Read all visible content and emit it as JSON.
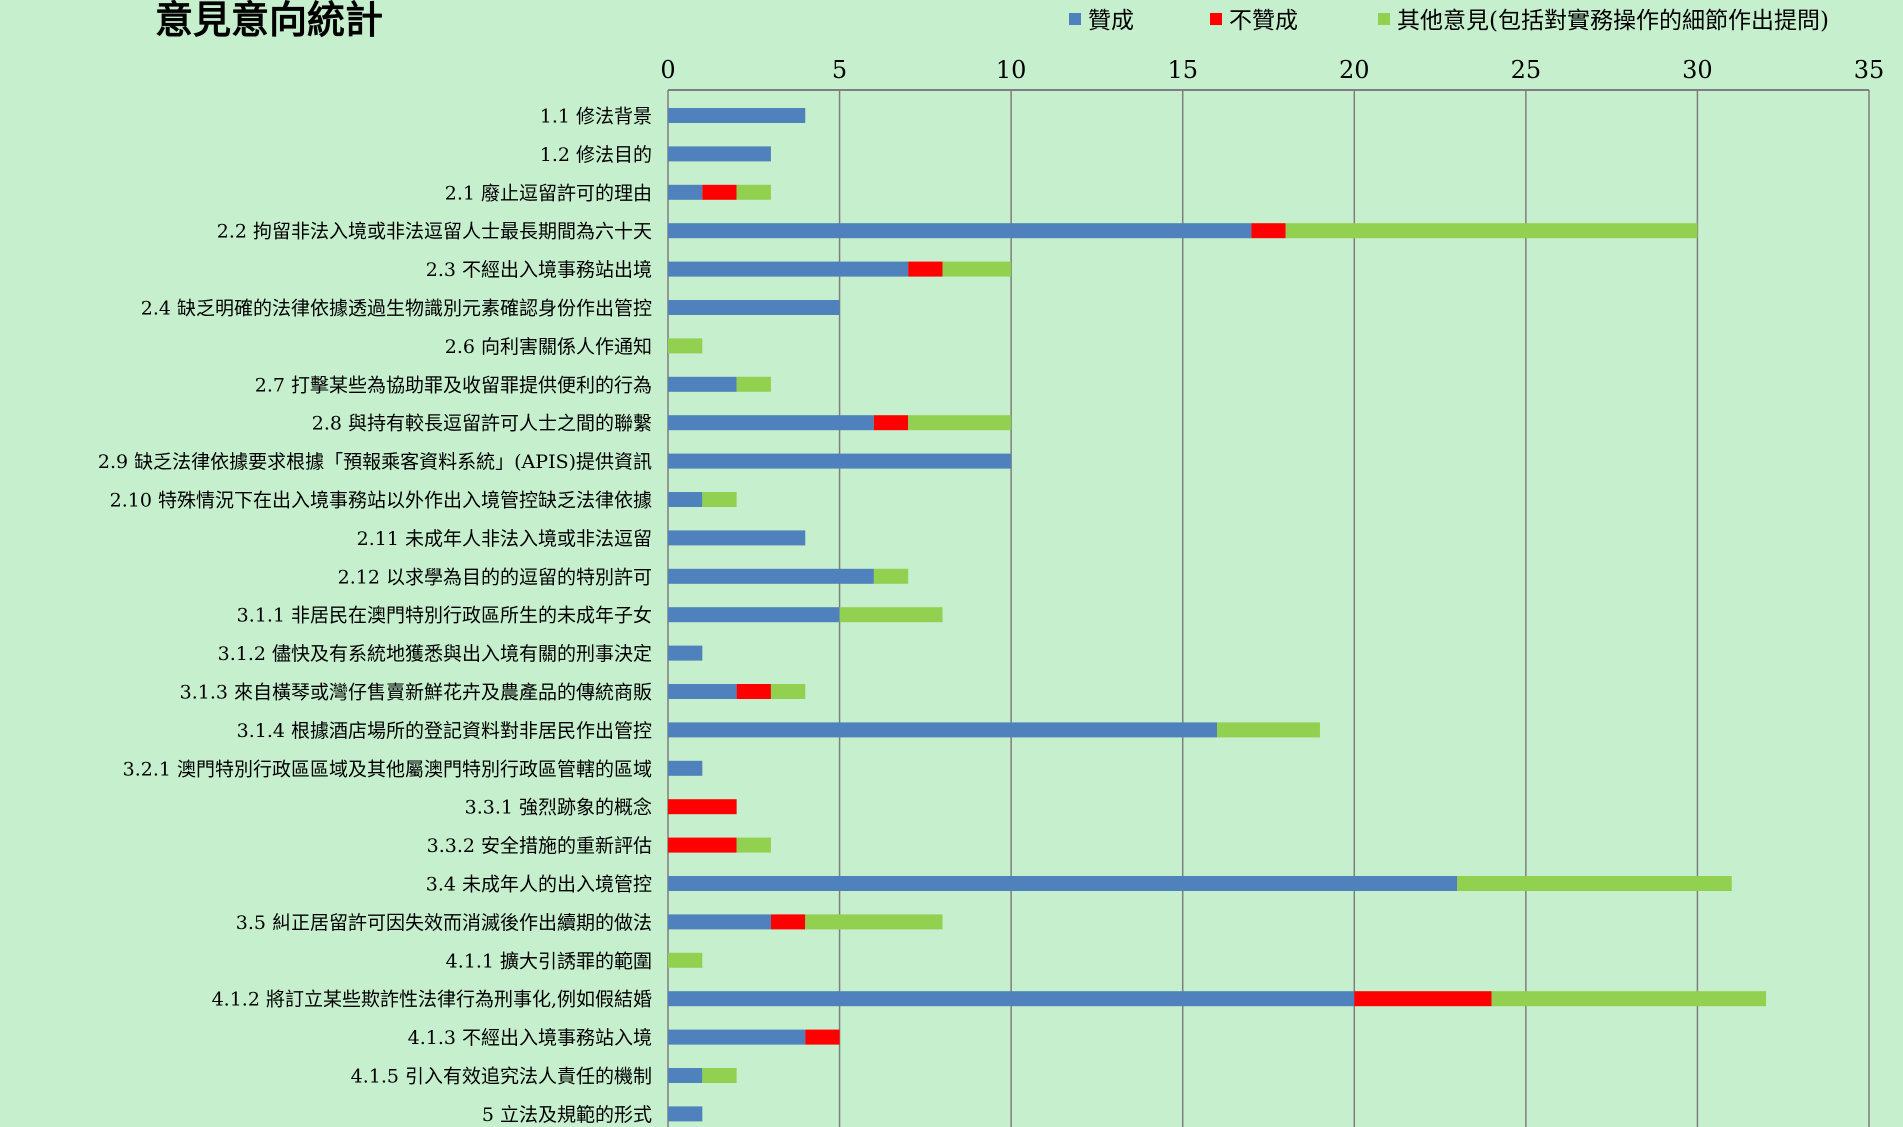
{
  "chart_data": {
    "type": "bar",
    "orientation": "horizontal",
    "stacked": true,
    "title": "意見意向統計",
    "legend_position": "top-right",
    "grid": true,
    "x_axis_position": "top",
    "xlim": [
      0,
      35
    ],
    "xticks": [
      0,
      5,
      10,
      15,
      20,
      25,
      30,
      35
    ],
    "categories": [
      "1.1 修法背景",
      "1.2 修法目的",
      "2.1 廢止逗留許可的理由",
      "2.2 拘留非法入境或非法逗留人士最長期間為六十天",
      "2.3 不經出入境事務站出境",
      "2.4 缺乏明確的法律依據透過生物識別元素確認身份作出管控",
      "2.6 向利害關係人作通知",
      "2.7 打擊某些為協助罪及收留罪提供便利的行為",
      "2.8 與持有較長逗留許可人士之間的聯繫",
      "2.9 缺乏法律依據要求根據「預報乘客資料系統」(APIS)提供資訊",
      "2.10 特殊情況下在出入境事務站以外作出入境管控缺乏法律依據",
      "2.11 未成年人非法入境或非法逗留",
      "2.12 以求學為目的的逗留的特別許可",
      "3.1.1 非居民在澳門特別行政區所生的未成年子女",
      "3.1.2 儘快及有系統地獲悉與出入境有關的刑事決定",
      "3.1.3 來自橫琴或灣仔售賣新鮮花卉及農產品的傳統商販",
      "3.1.4 根據酒店場所的登記資料對非居民作出管控",
      "3.2.1 澳門特別行政區區域及其他屬澳門特別行政區管轄的區域",
      "3.3.1 強烈跡象的概念",
      "3.3.2 安全措施的重新評估",
      "3.4 未成年人的出入境管控",
      "3.5 糾正居留許可因失效而消滅後作出續期的做法",
      "4.1.1 擴大引誘罪的範圍",
      "4.1.2 將訂立某些欺詐性法律行為刑事化,例如假結婚",
      "4.1.3 不經出入境事務站入境",
      "4.1.5 引入有效追究法人責任的機制",
      "5 立法及規範的形式"
    ],
    "series": [
      {
        "name": "贊成",
        "color": "#4f81bd",
        "values": [
          4,
          3,
          1,
          17,
          7,
          5,
          0,
          2,
          6,
          10,
          1,
          4,
          6,
          5,
          1,
          2,
          16,
          1,
          0,
          0,
          23,
          3,
          0,
          20,
          4,
          1,
          1
        ]
      },
      {
        "name": "不贊成",
        "color": "#ff0000",
        "values": [
          0,
          0,
          1,
          1,
          1,
          0,
          0,
          0,
          1,
          0,
          0,
          0,
          0,
          0,
          0,
          1,
          0,
          0,
          2,
          2,
          0,
          1,
          0,
          4,
          1,
          0,
          0
        ]
      },
      {
        "name": "其他意見(包括對實務操作的細節作出提問)",
        "color": "#92d050",
        "values": [
          0,
          0,
          1,
          12,
          2,
          0,
          1,
          1,
          3,
          0,
          1,
          0,
          1,
          3,
          0,
          1,
          3,
          0,
          0,
          1,
          8,
          4,
          1,
          8,
          0,
          1,
          0
        ]
      }
    ]
  }
}
